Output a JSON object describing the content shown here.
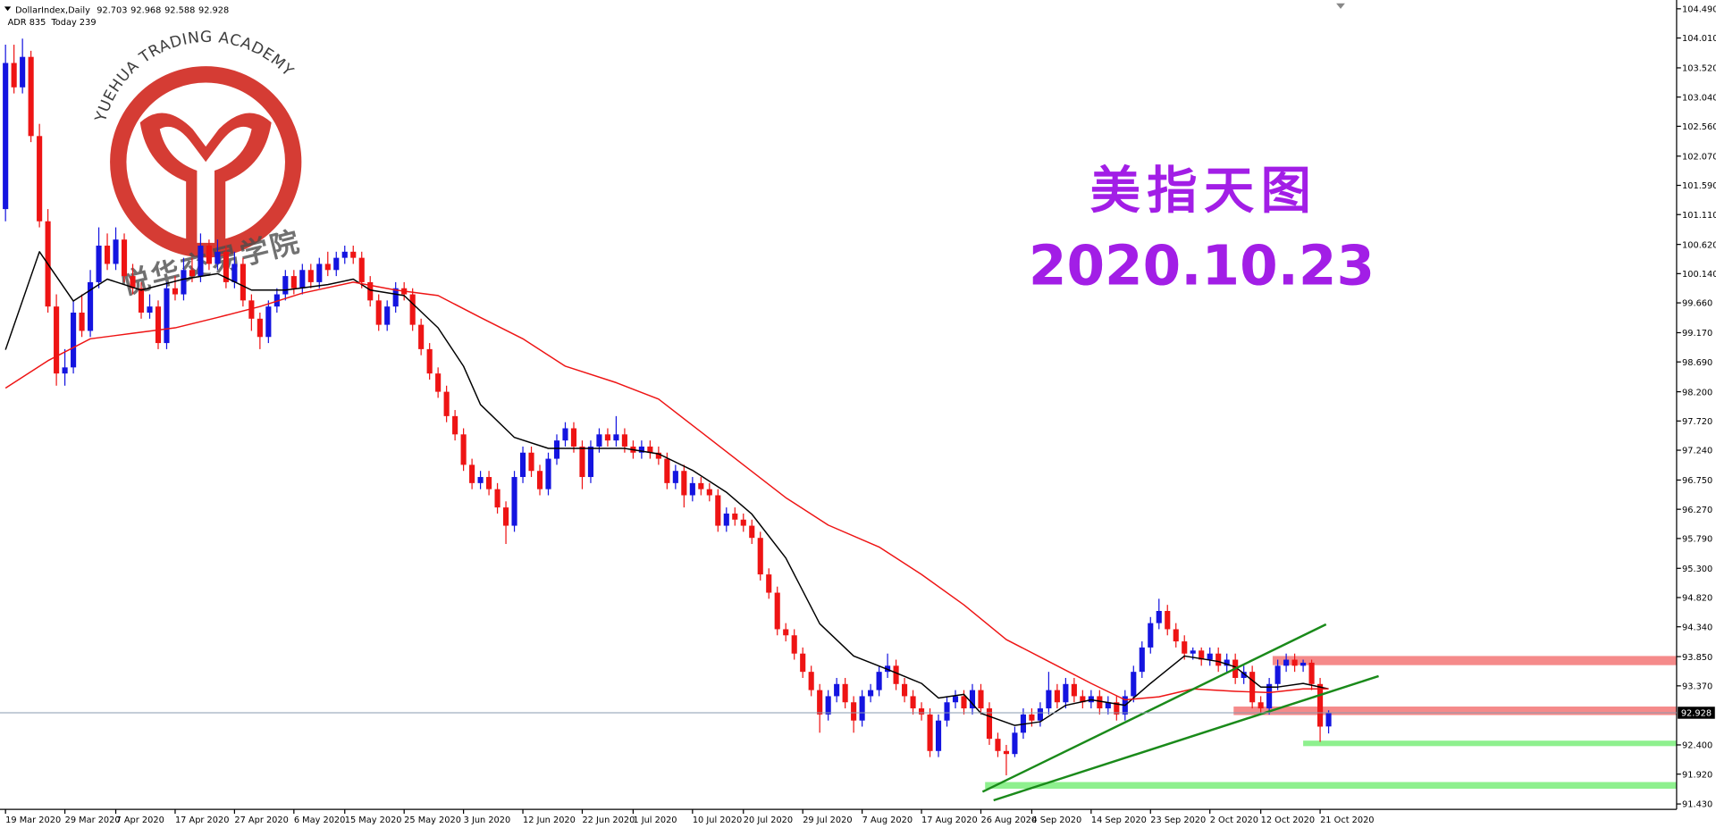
{
  "chart_data": {
    "type": "candlestick",
    "symbol": "DollarIndex,Daily",
    "info": [
      "ADR 835",
      "Today 239"
    ],
    "title": "美指天图",
    "subtitle": "2020.10.23",
    "watermark": {
      "text": "YUEHUA TRADING ACADEMY",
      "cn": "悦华交易学院"
    },
    "up_color": "#1414e0",
    "down_color": "#ee1414",
    "title_color": "#a21ee6",
    "xlim": [
      -0.65,
      197.03
    ],
    "ylim": [
      91.341,
      104.58
    ],
    "yticks": [
      {
        "value": 104.49,
        "label": "104.490"
      },
      {
        "value": 104.01,
        "label": "104.010"
      },
      {
        "value": 103.52,
        "label": "103.520"
      },
      {
        "value": 103.04,
        "label": "103.040"
      },
      {
        "value": 102.56,
        "label": "102.560"
      },
      {
        "value": 102.07,
        "label": "102.070"
      },
      {
        "value": 101.59,
        "label": "101.590"
      },
      {
        "value": 101.11,
        "label": "101.110"
      },
      {
        "value": 100.62,
        "label": "100.620"
      },
      {
        "value": 100.14,
        "label": "100.140"
      },
      {
        "value": 99.66,
        "label": "99.660"
      },
      {
        "value": 99.17,
        "label": "99.170"
      },
      {
        "value": 98.69,
        "label": "98.690"
      },
      {
        "value": 98.2,
        "label": "98.200"
      },
      {
        "value": 97.72,
        "label": "97.720"
      },
      {
        "value": 97.24,
        "label": "97.240"
      },
      {
        "value": 96.75,
        "label": "96.750"
      },
      {
        "value": 96.27,
        "label": "96.270"
      },
      {
        "value": 95.79,
        "label": "95.790"
      },
      {
        "value": 95.3,
        "label": "95.300"
      },
      {
        "value": 94.82,
        "label": "94.820"
      },
      {
        "value": 94.34,
        "label": "94.340"
      },
      {
        "value": 93.85,
        "label": "93.850"
      },
      {
        "value": 93.37,
        "label": "93.370"
      },
      {
        "value": 92.4,
        "label": "92.400"
      },
      {
        "value": 91.92,
        "label": "91.920"
      },
      {
        "value": 91.43,
        "label": "91.430"
      }
    ],
    "xticks": [
      {
        "value": 0,
        "label": "19 Mar 2020"
      },
      {
        "value": 7,
        "label": "29 Mar 2020"
      },
      {
        "value": 13,
        "label": "7 Apr 2020"
      },
      {
        "value": 20,
        "label": "17 Apr 2020"
      },
      {
        "value": 27,
        "label": "27 Apr 2020"
      },
      {
        "value": 34,
        "label": "6 May 2020"
      },
      {
        "value": 40,
        "label": "15 May 2020"
      },
      {
        "value": 47,
        "label": "25 May 2020"
      },
      {
        "value": 54,
        "label": "3 Jun 2020"
      },
      {
        "value": 61,
        "label": "12 Jun 2020"
      },
      {
        "value": 68,
        "label": "22 Jun 2020"
      },
      {
        "value": 74,
        "label": "1 Jul 2020"
      },
      {
        "value": 81,
        "label": "10 Jul 2020"
      },
      {
        "value": 87,
        "label": "20 Jul 2020"
      },
      {
        "value": 94,
        "label": "29 Jul 2020"
      },
      {
        "value": 101,
        "label": "7 Aug 2020"
      },
      {
        "value": 108,
        "label": "17 Aug 2020"
      },
      {
        "value": 115,
        "label": "26 Aug 2020"
      },
      {
        "value": 121,
        "label": "4 Sep 2020"
      },
      {
        "value": 128,
        "label": "14 Sep 2020"
      },
      {
        "value": 135,
        "label": "23 Sep 2020"
      },
      {
        "value": 142,
        "label": "2 Oct 2020"
      },
      {
        "value": 148,
        "label": "12 Oct 2020"
      },
      {
        "value": 155,
        "label": "21 Oct 2020"
      }
    ],
    "candles": [
      [
        101.2,
        103.9,
        101.0,
        103.6
      ],
      [
        103.6,
        103.9,
        103.1,
        103.2
      ],
      [
        103.2,
        104.0,
        103.1,
        103.7
      ],
      [
        103.7,
        103.8,
        102.3,
        102.4
      ],
      [
        102.4,
        102.6,
        100.9,
        101.0
      ],
      [
        101.0,
        101.2,
        99.5,
        99.6
      ],
      [
        99.6,
        99.8,
        98.3,
        98.5
      ],
      [
        98.5,
        98.9,
        98.3,
        98.6
      ],
      [
        98.6,
        99.7,
        98.5,
        99.5
      ],
      [
        99.5,
        99.8,
        99.1,
        99.2
      ],
      [
        99.2,
        100.2,
        99.1,
        100.0
      ],
      [
        100.0,
        100.9,
        99.9,
        100.6
      ],
      [
        100.6,
        100.8,
        100.2,
        100.3
      ],
      [
        100.3,
        100.9,
        100.2,
        100.7
      ],
      [
        100.7,
        100.8,
        100.0,
        100.1
      ],
      [
        100.1,
        100.3,
        99.8,
        99.9
      ],
      [
        99.9,
        100.0,
        99.4,
        99.5
      ],
      [
        99.5,
        99.8,
        99.4,
        99.6
      ],
      [
        99.6,
        99.7,
        98.9,
        99.0
      ],
      [
        99.0,
        100.0,
        98.9,
        99.9
      ],
      [
        99.9,
        100.1,
        99.7,
        99.8
      ],
      [
        99.8,
        100.4,
        99.7,
        100.2
      ],
      [
        100.2,
        100.4,
        100.0,
        100.1
      ],
      [
        100.1,
        100.8,
        100.0,
        100.6
      ],
      [
        100.6,
        100.7,
        100.2,
        100.3
      ],
      [
        100.3,
        100.7,
        100.2,
        100.5
      ],
      [
        100.5,
        100.6,
        99.9,
        100.0
      ],
      [
        100.0,
        100.5,
        99.9,
        100.3
      ],
      [
        100.3,
        100.4,
        99.6,
        99.7
      ],
      [
        99.7,
        99.8,
        99.2,
        99.4
      ],
      [
        99.4,
        99.5,
        98.9,
        99.1
      ],
      [
        99.1,
        99.7,
        99.0,
        99.6
      ],
      [
        99.6,
        99.9,
        99.5,
        99.8
      ],
      [
        99.8,
        100.2,
        99.7,
        100.1
      ],
      [
        100.1,
        100.2,
        99.8,
        99.9
      ],
      [
        99.9,
        100.3,
        99.8,
        100.2
      ],
      [
        100.2,
        100.3,
        99.9,
        100.0
      ],
      [
        100.0,
        100.4,
        99.9,
        100.3
      ],
      [
        100.3,
        100.5,
        100.1,
        100.2
      ],
      [
        100.2,
        100.5,
        100.1,
        100.4
      ],
      [
        100.4,
        100.6,
        100.3,
        100.5
      ],
      [
        100.5,
        100.6,
        100.3,
        100.4
      ],
      [
        100.4,
        100.5,
        99.9,
        100.0
      ],
      [
        100.0,
        100.1,
        99.6,
        99.7
      ],
      [
        99.7,
        99.8,
        99.2,
        99.3
      ],
      [
        99.3,
        99.7,
        99.2,
        99.6
      ],
      [
        99.6,
        100.0,
        99.5,
        99.9
      ],
      [
        99.9,
        100.0,
        99.7,
        99.8
      ],
      [
        99.8,
        99.9,
        99.2,
        99.3
      ],
      [
        99.3,
        99.4,
        98.8,
        98.9
      ],
      [
        98.9,
        99.0,
        98.4,
        98.5
      ],
      [
        98.5,
        98.6,
        98.1,
        98.2
      ],
      [
        98.2,
        98.3,
        97.7,
        97.8
      ],
      [
        97.8,
        97.9,
        97.4,
        97.5
      ],
      [
        97.5,
        97.6,
        96.9,
        97.0
      ],
      [
        97.0,
        97.1,
        96.6,
        96.7
      ],
      [
        96.7,
        96.9,
        96.6,
        96.8
      ],
      [
        96.8,
        96.9,
        96.5,
        96.6
      ],
      [
        96.6,
        96.7,
        96.2,
        96.3
      ],
      [
        96.3,
        96.4,
        95.7,
        96.0
      ],
      [
        96.0,
        96.9,
        95.9,
        96.8
      ],
      [
        96.8,
        97.3,
        96.7,
        97.2
      ],
      [
        97.2,
        97.3,
        96.8,
        96.9
      ],
      [
        96.9,
        97.0,
        96.5,
        96.6
      ],
      [
        96.6,
        97.2,
        96.5,
        97.1
      ],
      [
        97.1,
        97.5,
        97.0,
        97.4
      ],
      [
        97.4,
        97.7,
        97.3,
        97.6
      ],
      [
        97.6,
        97.7,
        97.2,
        97.3
      ],
      [
        97.3,
        97.4,
        96.6,
        96.8
      ],
      [
        96.8,
        97.4,
        96.7,
        97.3
      ],
      [
        97.3,
        97.6,
        97.2,
        97.5
      ],
      [
        97.5,
        97.6,
        97.3,
        97.4
      ],
      [
        97.4,
        97.8,
        97.3,
        97.5
      ],
      [
        97.5,
        97.6,
        97.2,
        97.3
      ],
      [
        97.3,
        97.4,
        97.1,
        97.2
      ],
      [
        97.2,
        97.4,
        97.1,
        97.3
      ],
      [
        97.3,
        97.4,
        97.1,
        97.2
      ],
      [
        97.2,
        97.3,
        97.0,
        97.1
      ],
      [
        97.1,
        97.2,
        96.6,
        96.7
      ],
      [
        96.7,
        97.0,
        96.6,
        96.9
      ],
      [
        96.9,
        97.0,
        96.3,
        96.5
      ],
      [
        96.5,
        96.8,
        96.4,
        96.7
      ],
      [
        96.7,
        96.8,
        96.5,
        96.6
      ],
      [
        96.6,
        96.7,
        96.4,
        96.5
      ],
      [
        96.5,
        96.6,
        95.9,
        96.0
      ],
      [
        96.0,
        96.3,
        95.9,
        96.2
      ],
      [
        96.2,
        96.3,
        96.0,
        96.1
      ],
      [
        96.1,
        96.2,
        95.9,
        96.0
      ],
      [
        96.0,
        96.1,
        95.7,
        95.8
      ],
      [
        95.8,
        95.9,
        95.1,
        95.2
      ],
      [
        95.2,
        95.3,
        94.8,
        94.9
      ],
      [
        94.9,
        95.0,
        94.2,
        94.3
      ],
      [
        94.3,
        94.4,
        94.1,
        94.2
      ],
      [
        94.2,
        94.3,
        93.8,
        93.9
      ],
      [
        93.9,
        94.0,
        93.5,
        93.6
      ],
      [
        93.6,
        93.7,
        93.2,
        93.3
      ],
      [
        93.3,
        93.4,
        92.6,
        92.9
      ],
      [
        92.9,
        93.3,
        92.8,
        93.2
      ],
      [
        93.2,
        93.5,
        93.1,
        93.4
      ],
      [
        93.4,
        93.5,
        93.0,
        93.1
      ],
      [
        93.1,
        93.2,
        92.6,
        92.8
      ],
      [
        92.8,
        93.3,
        92.7,
        93.2
      ],
      [
        93.2,
        93.4,
        93.1,
        93.3
      ],
      [
        93.3,
        93.7,
        93.2,
        93.6
      ],
      [
        93.6,
        93.9,
        93.5,
        93.7
      ],
      [
        93.7,
        93.8,
        93.3,
        93.4
      ],
      [
        93.4,
        93.5,
        93.1,
        93.2
      ],
      [
        93.2,
        93.3,
        92.9,
        93.0
      ],
      [
        93.0,
        93.1,
        92.8,
        92.9
      ],
      [
        92.9,
        93.0,
        92.2,
        92.3
      ],
      [
        92.3,
        92.9,
        92.2,
        92.8
      ],
      [
        92.8,
        93.2,
        92.7,
        93.1
      ],
      [
        93.1,
        93.3,
        93.0,
        93.2
      ],
      [
        93.2,
        93.3,
        92.9,
        93.0
      ],
      [
        93.0,
        93.4,
        92.9,
        93.3
      ],
      [
        93.3,
        93.4,
        92.9,
        93.0
      ],
      [
        93.0,
        93.1,
        92.4,
        92.5
      ],
      [
        92.5,
        92.6,
        92.2,
        92.3
      ],
      [
        92.3,
        92.4,
        91.9,
        92.25
      ],
      [
        92.25,
        92.7,
        92.2,
        92.6
      ],
      [
        92.6,
        93.0,
        92.5,
        92.9
      ],
      [
        92.9,
        93.0,
        92.7,
        92.8
      ],
      [
        92.8,
        93.1,
        92.7,
        93.0
      ],
      [
        93.0,
        93.6,
        92.9,
        93.3
      ],
      [
        93.3,
        93.4,
        93.0,
        93.1
      ],
      [
        93.1,
        93.5,
        93.0,
        93.4
      ],
      [
        93.4,
        93.5,
        93.1,
        93.2
      ],
      [
        93.2,
        93.3,
        93.0,
        93.1
      ],
      [
        93.1,
        93.3,
        93.0,
        93.2
      ],
      [
        93.2,
        93.3,
        92.9,
        93.0
      ],
      [
        93.0,
        93.2,
        92.9,
        93.1
      ],
      [
        93.1,
        93.2,
        92.8,
        92.9
      ],
      [
        92.9,
        93.3,
        92.8,
        93.2
      ],
      [
        93.2,
        93.7,
        93.1,
        93.6
      ],
      [
        93.6,
        94.1,
        93.5,
        94.0
      ],
      [
        94.0,
        94.5,
        93.9,
        94.4
      ],
      [
        94.4,
        94.8,
        94.3,
        94.6
      ],
      [
        94.6,
        94.7,
        94.2,
        94.3
      ],
      [
        94.3,
        94.4,
        94.0,
        94.1
      ],
      [
        94.1,
        94.2,
        93.8,
        93.9
      ],
      [
        93.9,
        94.0,
        93.8,
        93.95
      ],
      [
        93.95,
        94.0,
        93.7,
        93.8
      ],
      [
        93.8,
        94.0,
        93.7,
        93.9
      ],
      [
        93.9,
        94.0,
        93.6,
        93.7
      ],
      [
        93.7,
        93.9,
        93.6,
        93.8
      ],
      [
        93.8,
        93.9,
        93.4,
        93.5
      ],
      [
        93.5,
        93.7,
        93.4,
        93.6
      ],
      [
        93.6,
        93.7,
        93.0,
        93.1
      ],
      [
        93.1,
        93.2,
        92.9,
        93.0
      ],
      [
        93.0,
        93.5,
        92.9,
        93.4
      ],
      [
        93.4,
        93.8,
        93.3,
        93.7
      ],
      [
        93.7,
        93.9,
        93.6,
        93.8
      ],
      [
        93.8,
        93.9,
        93.6,
        93.7
      ],
      [
        93.7,
        93.8,
        93.6,
        93.75
      ],
      [
        93.75,
        93.8,
        93.3,
        93.4
      ],
      [
        93.4,
        93.5,
        92.45,
        92.7
      ],
      [
        92.703,
        92.968,
        92.588,
        92.928
      ]
    ],
    "lines": [
      {
        "color": "#000000",
        "x": [
          0,
          4,
          8,
          12,
          16,
          21,
          25,
          29,
          33,
          38,
          41,
          43,
          47,
          51,
          54,
          56,
          60,
          64,
          68,
          73,
          77,
          81,
          85,
          88,
          92,
          96,
          100,
          104,
          108,
          110,
          113,
          115,
          119,
          122,
          125,
          128,
          132,
          135,
          139,
          143,
          145,
          148,
          150,
          153,
          156
        ],
        "values": [
          98.89,
          100.5,
          99.69,
          100.05,
          99.87,
          100.05,
          100.14,
          99.87,
          99.87,
          99.96,
          100.05,
          99.87,
          99.78,
          99.25,
          98.62,
          97.99,
          97.45,
          97.27,
          97.27,
          97.27,
          97.18,
          96.91,
          96.55,
          96.19,
          95.47,
          94.39,
          93.86,
          93.64,
          93.41,
          93.17,
          93.23,
          92.92,
          92.72,
          92.78,
          93.05,
          93.14,
          93.05,
          93.41,
          93.86,
          93.77,
          93.68,
          93.35,
          93.35,
          93.41,
          93.32
        ]
      },
      {
        "color": "#ee1414",
        "x": [
          0,
          5,
          10,
          15,
          20,
          25,
          30,
          35,
          41,
          46,
          51,
          56,
          61,
          66,
          72,
          77,
          82,
          87,
          92,
          97,
          103,
          108,
          113,
          118,
          123,
          128,
          132,
          136,
          140,
          145,
          149,
          153,
          156
        ],
        "values": [
          98.26,
          98.71,
          99.07,
          99.16,
          99.25,
          99.42,
          99.6,
          99.82,
          100.0,
          99.87,
          99.78,
          99.42,
          99.07,
          98.62,
          98.35,
          98.08,
          97.54,
          97.0,
          96.46,
          96.01,
          95.65,
          95.2,
          94.7,
          94.13,
          93.77,
          93.41,
          93.14,
          93.19,
          93.32,
          93.28,
          93.26,
          93.32,
          93.32
        ]
      }
    ],
    "trendlines": [
      {
        "color": "#1a8a1a",
        "x": [
          115.2,
          155.7
        ],
        "values": [
          91.63,
          94.38
        ]
      },
      {
        "color": "#1a8a1a",
        "x": [
          116.5,
          161.9
        ],
        "values": [
          91.49,
          93.53
        ]
      }
    ],
    "zones": [
      {
        "color": "#f58a8a",
        "x": [
          149.4,
          197.03
        ],
        "values": [
          93.71,
          93.86
        ]
      },
      {
        "color": "#f58a8a",
        "x": [
          144.8,
          197.03
        ],
        "values": [
          92.89,
          93.03
        ]
      },
      {
        "color": "#8ef08e",
        "x": [
          153,
          197.03
        ],
        "values": [
          92.38,
          92.47
        ]
      },
      {
        "color": "#8ef08e",
        "x": [
          115.5,
          197.03
        ],
        "values": [
          91.68,
          91.79
        ]
      }
    ]
  }
}
